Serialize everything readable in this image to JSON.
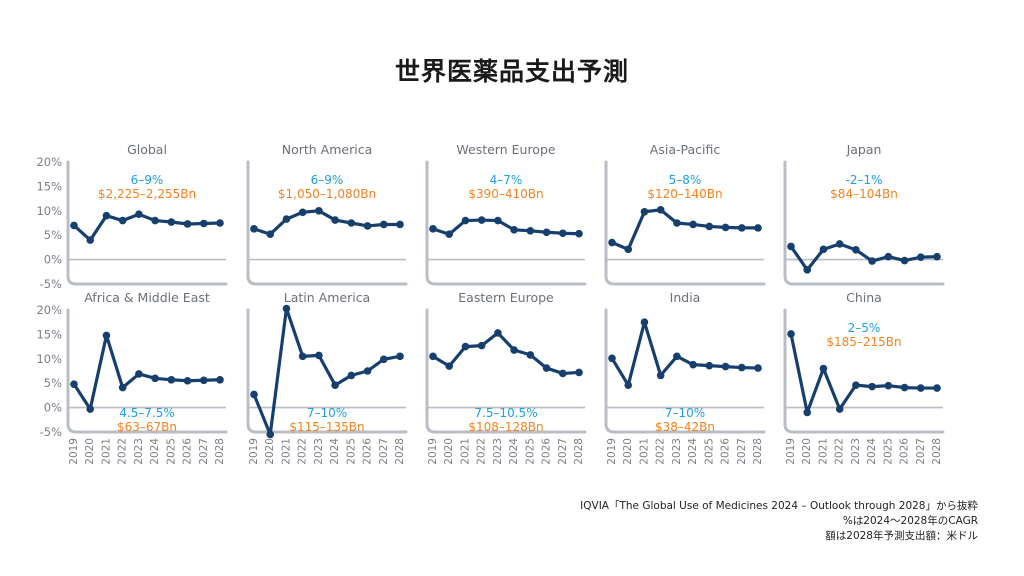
{
  "title": "世界医薬品支出予測",
  "source": {
    "line1": "IQVIA「The Global Use of Medicines 2024 – Outlook through 2028」から抜粋",
    "line2": "%は2024〜2028年のCAGR",
    "line3": "額は2028年予測支出額：米ドル"
  },
  "colors": {
    "line": "#173f6e",
    "axis": "#b9bec6",
    "tick_text": "#7a7f87",
    "panel_title": "#6b7078",
    "cagr": "#1ea0e6",
    "amount": "#f5821f"
  },
  "chart_data": [
    {
      "type": "line",
      "title": "Global",
      "x": [
        "2019",
        "2020",
        "2021",
        "2022",
        "2023",
        "2024",
        "2025",
        "2026",
        "2027",
        "2028"
      ],
      "ylim": [
        -5,
        20
      ],
      "yticks": [
        "20%",
        "15%",
        "10%",
        "5%",
        "0%",
        "-5%"
      ],
      "values": [
        7,
        4,
        9,
        8,
        9.3,
        8,
        7.7,
        7.3,
        7.4,
        7.5
      ],
      "cagr": "6–9%",
      "amount": "$2,225–2,255Bn",
      "annotation_position": "top"
    },
    {
      "type": "line",
      "title": "North America",
      "x": [
        "2019",
        "2020",
        "2021",
        "2022",
        "2023",
        "2024",
        "2025",
        "2026",
        "2027",
        "2028"
      ],
      "ylim": [
        -5,
        20
      ],
      "values": [
        6.3,
        5.2,
        8.3,
        9.7,
        10,
        8.1,
        7.5,
        6.9,
        7.2,
        7.2
      ],
      "cagr": "6–9%",
      "amount": "$1,050–1,080Bn",
      "annotation_position": "top"
    },
    {
      "type": "line",
      "title": "Western Europe",
      "x": [
        "2019",
        "2020",
        "2021",
        "2022",
        "2023",
        "2024",
        "2025",
        "2026",
        "2027",
        "2028"
      ],
      "ylim": [
        -5,
        20
      ],
      "values": [
        6.3,
        5.2,
        8,
        8.1,
        8,
        6.1,
        5.9,
        5.6,
        5.4,
        5.3
      ],
      "cagr": "4–7%",
      "amount": "$390–410Bn",
      "annotation_position": "top"
    },
    {
      "type": "line",
      "title": "Asia-Pacific",
      "x": [
        "2019",
        "2020",
        "2021",
        "2022",
        "2023",
        "2024",
        "2025",
        "2026",
        "2027",
        "2028"
      ],
      "ylim": [
        -5,
        20
      ],
      "values": [
        3.5,
        2.1,
        9.8,
        10.2,
        7.5,
        7.2,
        6.8,
        6.6,
        6.5,
        6.5
      ],
      "cagr": "5–8%",
      "amount": "$120–140Bn",
      "annotation_position": "top"
    },
    {
      "type": "line",
      "title": "Japan",
      "x": [
        "2019",
        "2020",
        "2021",
        "2022",
        "2023",
        "2024",
        "2025",
        "2026",
        "2027",
        "2028"
      ],
      "ylim": [
        -5,
        20
      ],
      "values": [
        2.7,
        -2.1,
        2.1,
        3.2,
        2,
        -0.3,
        0.6,
        -0.2,
        0.5,
        0.6
      ],
      "cagr": "-2–1%",
      "amount": "$84–104Bn",
      "annotation_position": "top"
    },
    {
      "type": "line",
      "title": "Africa & Middle East",
      "x": [
        "2019",
        "2020",
        "2021",
        "2022",
        "2023",
        "2024",
        "2025",
        "2026",
        "2027",
        "2028"
      ],
      "ylim": [
        -5,
        20
      ],
      "values": [
        4.8,
        -0.3,
        14.8,
        4.1,
        6.9,
        6,
        5.7,
        5.5,
        5.6,
        5.7
      ],
      "cagr": "4.5–7.5%",
      "amount": "$63–67Bn",
      "annotation_position": "bottom"
    },
    {
      "type": "line",
      "title": "Latin America",
      "x": [
        "2019",
        "2020",
        "2021",
        "2022",
        "2023",
        "2024",
        "2025",
        "2026",
        "2027",
        "2028"
      ],
      "ylim": [
        -5,
        20
      ],
      "values": [
        2.7,
        -5.5,
        20.3,
        10.5,
        10.7,
        4.6,
        6.6,
        7.5,
        9.9,
        10.5
      ],
      "cagr": "7–10%",
      "amount": "$115–135Bn",
      "annotation_position": "bottom"
    },
    {
      "type": "line",
      "title": "Eastern Europe",
      "x": [
        "2019",
        "2020",
        "2021",
        "2022",
        "2023",
        "2024",
        "2025",
        "2026",
        "2027",
        "2028"
      ],
      "ylim": [
        -5,
        20
      ],
      "values": [
        10.5,
        8.5,
        12.5,
        12.7,
        15.3,
        11.8,
        10.8,
        8.1,
        7,
        7.2
      ],
      "cagr": "7.5–10.5%",
      "amount": "$108–128Bn",
      "annotation_position": "bottom"
    },
    {
      "type": "line",
      "title": "India",
      "x": [
        "2019",
        "2020",
        "2021",
        "2022",
        "2023",
        "2024",
        "2025",
        "2026",
        "2027",
        "2028"
      ],
      "ylim": [
        -5,
        20
      ],
      "values": [
        10.1,
        4.6,
        17.5,
        6.6,
        10.5,
        8.8,
        8.6,
        8.4,
        8.2,
        8.1
      ],
      "cagr": "7–10%",
      "amount": "$38–42Bn",
      "annotation_position": "bottom"
    },
    {
      "type": "line",
      "title": "China",
      "x": [
        "2019",
        "2020",
        "2021",
        "2022",
        "2023",
        "2024",
        "2025",
        "2026",
        "2027",
        "2028"
      ],
      "ylim": [
        -5,
        20
      ],
      "values": [
        15.1,
        -1,
        8,
        -0.3,
        4.6,
        4.3,
        4.5,
        4.1,
        4,
        4
      ],
      "cagr": "2–5%",
      "amount": "$185–215Bn",
      "annotation_position": "top"
    }
  ]
}
